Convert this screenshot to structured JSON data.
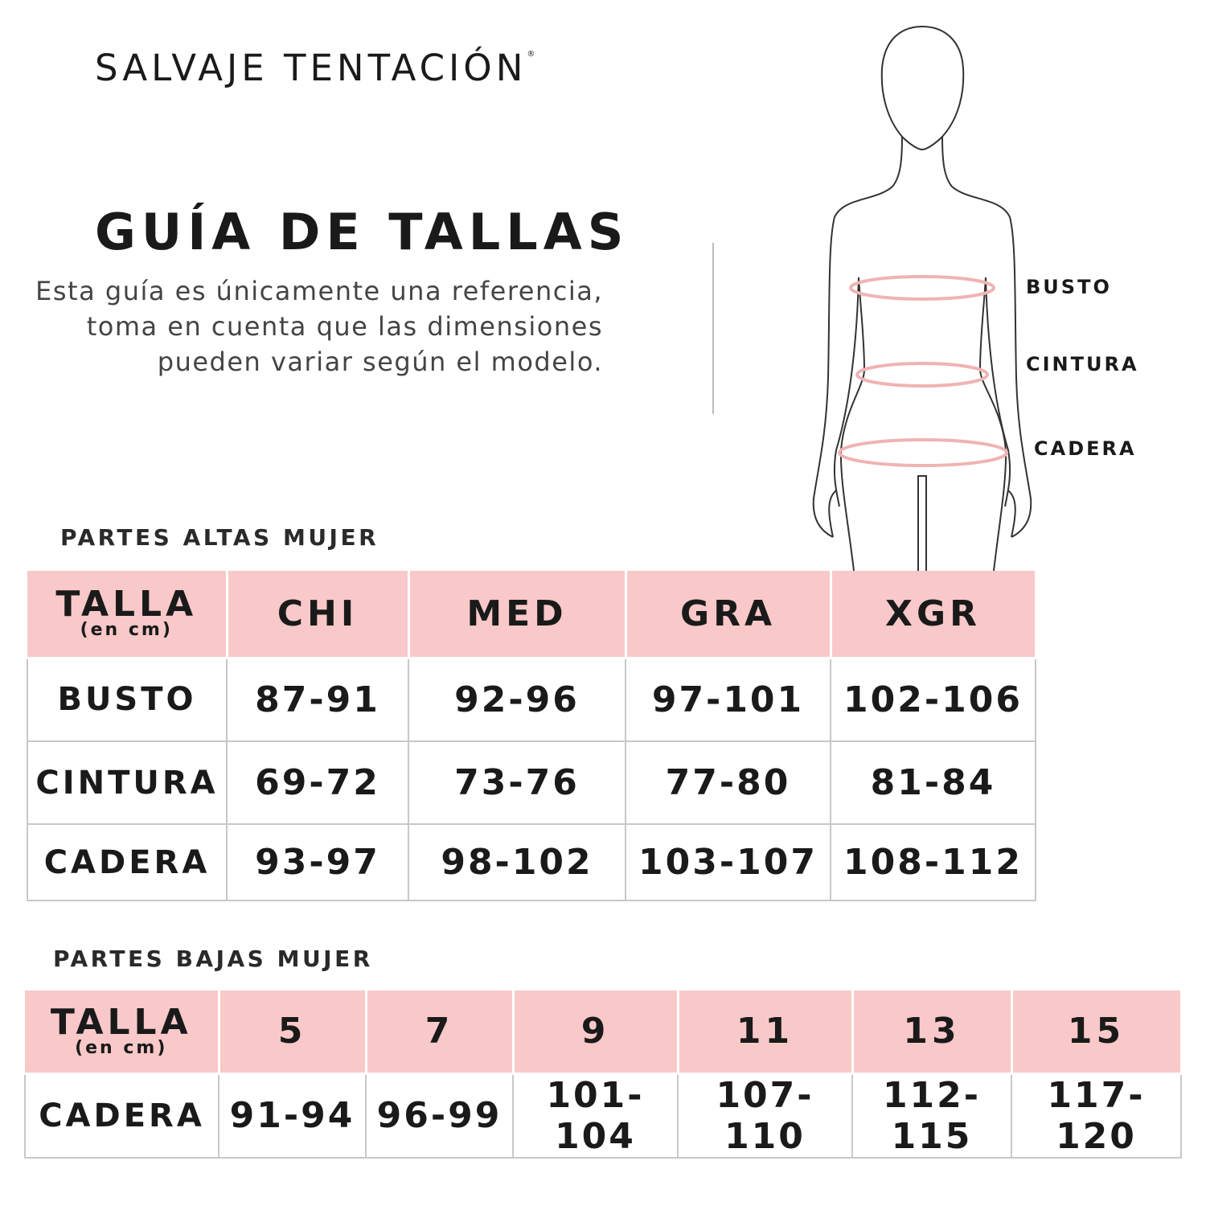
{
  "brand": {
    "name": "SALVAJE TENTACIÓN",
    "mark": "®"
  },
  "title": "GUÍA DE TALLAS",
  "description": "Esta guía es únicamente una referencia, toma en cuenta que las dimensiones pueden variar según el modelo.",
  "figure": {
    "labels": [
      "BUSTO",
      "CINTURA",
      "CADERA"
    ],
    "measure_color": "#f0b3b3"
  },
  "colors": {
    "header_bg": "#f9c8c8",
    "text": "#1a1a1a"
  },
  "upper": {
    "section_title": "PARTES ALTAS MUJER",
    "header_label": "TALLA",
    "header_unit": "(en cm)",
    "columns": [
      "CHI",
      "MED",
      "GRA",
      "XGR"
    ],
    "rows": [
      {
        "label": "BUSTO",
        "values": [
          "87-91",
          "92-96",
          "97-101",
          "102-106"
        ]
      },
      {
        "label": "CINTURA",
        "values": [
          "69-72",
          "73-76",
          "77-80",
          "81-84"
        ]
      },
      {
        "label": "CADERA",
        "values": [
          "93-97",
          "98-102",
          "103-107",
          "108-112"
        ]
      }
    ]
  },
  "lower": {
    "section_title": "PARTES BAJAS MUJER",
    "header_label": "TALLA",
    "header_unit": "(en cm)",
    "columns": [
      "5",
      "7",
      "9",
      "11",
      "13",
      "15"
    ],
    "rows": [
      {
        "label": "CADERA",
        "values": [
          "91-94",
          "96-99",
          "101-104",
          "107-110",
          "112-115",
          "117-120"
        ]
      }
    ]
  }
}
